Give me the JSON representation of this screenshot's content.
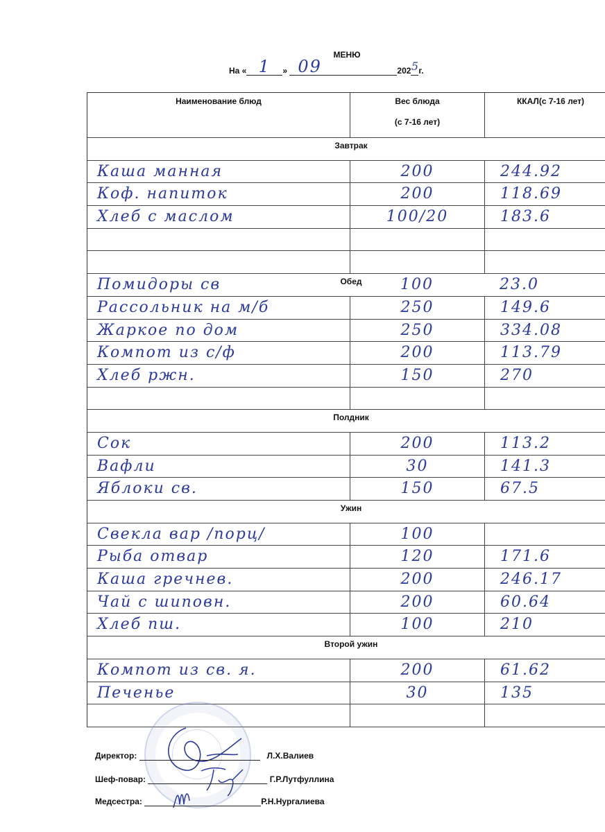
{
  "header": {
    "title": "МЕНЮ",
    "date_prefix": "На «",
    "day": "1",
    "day_suffix": "»",
    "month": "09",
    "year_prefix": "202",
    "year_digit": "5",
    "year_suffix": "г."
  },
  "table": {
    "columns": {
      "name": "Наименование блюд",
      "weight_line1": "Вес блюда",
      "weight_line2": "(с 7-16 лет)",
      "kcal": "ККАЛ(с 7-16 лет)"
    },
    "rows": [
      {
        "section": "Завтрак"
      },
      {
        "name": "Каша манная",
        "weight": "200",
        "kcal": "244.92"
      },
      {
        "name": "Коф. напиток",
        "weight": "200",
        "kcal": "118.69"
      },
      {
        "name": "Хлеб с маслом",
        "weight": "100/20",
        "kcal": "183.6"
      },
      {
        "name": "",
        "weight": "",
        "kcal": ""
      },
      {
        "name": "",
        "weight": "",
        "kcal": ""
      },
      {
        "section": "Обед",
        "name": "Помидоры св",
        "weight": "100",
        "kcal": "23.0"
      },
      {
        "name": "Рассольник на м/б",
        "weight": "250",
        "kcal": "149.6"
      },
      {
        "name": "Жаркое по дом",
        "weight": "250",
        "kcal": "334.08"
      },
      {
        "name": "Компот из с/ф",
        "weight": "200",
        "kcal": "113.79"
      },
      {
        "name": "Хлеб ржн.",
        "weight": "150",
        "kcal": "270"
      },
      {
        "name": "",
        "weight": "",
        "kcal": ""
      },
      {
        "section": "Полдник"
      },
      {
        "name": "Сок",
        "weight": "200",
        "kcal": "113.2"
      },
      {
        "name": "Вафли",
        "weight": "30",
        "kcal": "141.3"
      },
      {
        "name": "Яблоки св.",
        "weight": "150",
        "kcal": "67.5"
      },
      {
        "section": "Ужин"
      },
      {
        "name": "Свекла вар /порц/",
        "weight": "100",
        "kcal": ""
      },
      {
        "name": "Рыба отвар",
        "weight": "120",
        "kcal": "171.6"
      },
      {
        "name": "Каша гречнев.",
        "weight": "200",
        "kcal": "246.17"
      },
      {
        "name": "Чай с шиповн.",
        "weight": "200",
        "kcal": "60.64"
      },
      {
        "name": "Хлеб пш.",
        "weight": "100",
        "kcal": "210"
      },
      {
        "section": "Второй ужин"
      },
      {
        "name": "Компот из св. я.",
        "weight": "200",
        "kcal": "61.62"
      },
      {
        "name": "Печенье",
        "weight": "30",
        "kcal": "135"
      },
      {
        "name": "",
        "weight": "",
        "kcal": ""
      }
    ]
  },
  "signatures": {
    "director_label": "Директор:",
    "director_name": "Л.Х.Валиев",
    "chef_label": "Шеф-повар:",
    "chef_name": "Г.Р.Лутфуллина",
    "nurse_label": "Медсестра:",
    "nurse_name": "Р.Н.Нургалиева"
  },
  "colors": {
    "ink": "#2b3a9c",
    "stamp": "#7f90cc"
  }
}
